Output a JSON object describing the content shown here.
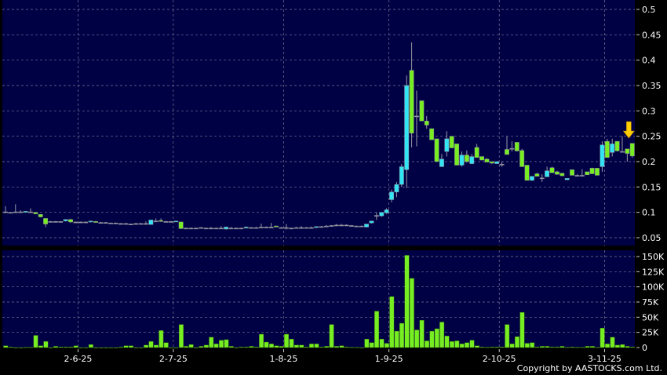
{
  "chart_data": {
    "type": "candlestick",
    "price": {
      "ylim": [
        0.05,
        0.5
      ],
      "yticks": [
        "0.5",
        "0.45",
        "0.4",
        "0.35",
        "0.3",
        "0.25",
        "0.2",
        "0.15",
        "0.1",
        "0.05"
      ],
      "ytick_values": [
        0.5,
        0.45,
        0.4,
        0.35,
        0.3,
        0.25,
        0.2,
        0.15,
        0.1,
        0.05
      ],
      "ohlc": [
        [
          0.101,
          0.112,
          0.1,
          0.1
        ],
        [
          0.1,
          0.101,
          0.099,
          0.1
        ],
        [
          0.1,
          0.116,
          0.1,
          0.101
        ],
        [
          0.101,
          0.104,
          0.1,
          0.101
        ],
        [
          0.1,
          0.102,
          0.1,
          0.102
        ],
        [
          0.101,
          0.108,
          0.1,
          0.101
        ],
        [
          0.1,
          0.101,
          0.097,
          0.097
        ],
        [
          0.096,
          0.096,
          0.09,
          0.091
        ],
        [
          0.088,
          0.088,
          0.071,
          0.077
        ],
        [
          0.082,
          0.083,
          0.081,
          0.082
        ],
        [
          0.082,
          0.083,
          0.081,
          0.081
        ],
        [
          0.081,
          0.082,
          0.08,
          0.082
        ],
        [
          0.083,
          0.086,
          0.082,
          0.086
        ],
        [
          0.086,
          0.087,
          0.079,
          0.081
        ],
        [
          0.081,
          0.082,
          0.08,
          0.081
        ],
        [
          0.081,
          0.082,
          0.08,
          0.081
        ],
        [
          0.081,
          0.082,
          0.08,
          0.08
        ],
        [
          0.081,
          0.083,
          0.08,
          0.083
        ],
        [
          0.082,
          0.083,
          0.08,
          0.08
        ],
        [
          0.08,
          0.081,
          0.079,
          0.08
        ],
        [
          0.08,
          0.081,
          0.079,
          0.08
        ],
        [
          0.079,
          0.08,
          0.078,
          0.079
        ],
        [
          0.079,
          0.08,
          0.078,
          0.078
        ],
        [
          0.078,
          0.079,
          0.077,
          0.078
        ],
        [
          0.078,
          0.079,
          0.077,
          0.077
        ],
        [
          0.077,
          0.078,
          0.076,
          0.077
        ],
        [
          0.077,
          0.079,
          0.076,
          0.078
        ],
        [
          0.078,
          0.079,
          0.077,
          0.078
        ],
        [
          0.078,
          0.082,
          0.077,
          0.078
        ],
        [
          0.076,
          0.085,
          0.076,
          0.085
        ],
        [
          0.083,
          0.088,
          0.082,
          0.083
        ],
        [
          0.084,
          0.088,
          0.081,
          0.082
        ],
        [
          0.082,
          0.083,
          0.081,
          0.082
        ],
        [
          0.082,
          0.083,
          0.081,
          0.082
        ],
        [
          0.081,
          0.083,
          0.081,
          0.083
        ],
        [
          0.081,
          0.082,
          0.067,
          0.068
        ],
        [
          0.069,
          0.07,
          0.068,
          0.069
        ],
        [
          0.069,
          0.07,
          0.068,
          0.069
        ],
        [
          0.069,
          0.07,
          0.068,
          0.068
        ],
        [
          0.07,
          0.071,
          0.069,
          0.07
        ],
        [
          0.069,
          0.07,
          0.068,
          0.069
        ],
        [
          0.069,
          0.071,
          0.068,
          0.069
        ],
        [
          0.069,
          0.07,
          0.068,
          0.069
        ],
        [
          0.069,
          0.073,
          0.068,
          0.069
        ],
        [
          0.067,
          0.072,
          0.066,
          0.071
        ],
        [
          0.069,
          0.071,
          0.068,
          0.069
        ],
        [
          0.069,
          0.07,
          0.068,
          0.069
        ],
        [
          0.069,
          0.07,
          0.068,
          0.069
        ],
        [
          0.069,
          0.072,
          0.068,
          0.071
        ],
        [
          0.07,
          0.071,
          0.069,
          0.07
        ],
        [
          0.07,
          0.071,
          0.069,
          0.07
        ],
        [
          0.07,
          0.078,
          0.069,
          0.071
        ],
        [
          0.071,
          0.072,
          0.07,
          0.071
        ],
        [
          0.071,
          0.079,
          0.07,
          0.071
        ],
        [
          0.073,
          0.074,
          0.071,
          0.071
        ],
        [
          0.07,
          0.071,
          0.069,
          0.07
        ],
        [
          0.07,
          0.077,
          0.066,
          0.07
        ],
        [
          0.069,
          0.07,
          0.068,
          0.069
        ],
        [
          0.07,
          0.071,
          0.069,
          0.07
        ],
        [
          0.07,
          0.073,
          0.069,
          0.07
        ],
        [
          0.07,
          0.071,
          0.069,
          0.07
        ],
        [
          0.07,
          0.072,
          0.069,
          0.07
        ],
        [
          0.07,
          0.072,
          0.069,
          0.072
        ],
        [
          0.072,
          0.073,
          0.07,
          0.072
        ],
        [
          0.072,
          0.075,
          0.071,
          0.073
        ],
        [
          0.073,
          0.075,
          0.072,
          0.074
        ],
        [
          0.074,
          0.077,
          0.073,
          0.075
        ],
        [
          0.075,
          0.077,
          0.074,
          0.075
        ],
        [
          0.075,
          0.076,
          0.073,
          0.074
        ],
        [
          0.074,
          0.075,
          0.073,
          0.073
        ],
        [
          0.073,
          0.074,
          0.072,
          0.073
        ],
        [
          0.073,
          0.074,
          0.072,
          0.072
        ],
        [
          0.071,
          0.075,
          0.07,
          0.077
        ],
        [
          0.079,
          0.082,
          0.078,
          0.083
        ],
        [
          0.094,
          0.1,
          0.085,
          0.094
        ],
        [
          0.093,
          0.1,
          0.091,
          0.1
        ],
        [
          0.099,
          0.108,
          0.097,
          0.105
        ],
        [
          0.125,
          0.145,
          0.12,
          0.14
        ],
        [
          0.14,
          0.16,
          0.13,
          0.155
        ],
        [
          0.155,
          0.195,
          0.15,
          0.19
        ],
        [
          0.184,
          0.37,
          0.148,
          0.35
        ],
        [
          0.38,
          0.435,
          0.228,
          0.256
        ],
        [
          0.29,
          0.34,
          0.23,
          0.29
        ],
        [
          0.32,
          0.32,
          0.28,
          0.28
        ],
        [
          0.28,
          0.29,
          0.265,
          0.272
        ],
        [
          0.265,
          0.265,
          0.243,
          0.243
        ],
        [
          0.245,
          0.245,
          0.2,
          0.2
        ],
        [
          0.19,
          0.215,
          0.19,
          0.205
        ],
        [
          0.22,
          0.26,
          0.21,
          0.245
        ],
        [
          0.25,
          0.25,
          0.227,
          0.227
        ],
        [
          0.235,
          0.235,
          0.193,
          0.193
        ],
        [
          0.193,
          0.22,
          0.19,
          0.213
        ],
        [
          0.213,
          0.222,
          0.198,
          0.2
        ],
        [
          0.196,
          0.215,
          0.195,
          0.21
        ],
        [
          0.228,
          0.235,
          0.208,
          0.208
        ],
        [
          0.21,
          0.21,
          0.203,
          0.203
        ],
        [
          0.205,
          0.207,
          0.199,
          0.199
        ],
        [
          0.2,
          0.2,
          0.195,
          0.197
        ],
        [
          0.196,
          0.2,
          0.196,
          0.2
        ],
        [
          0.195,
          0.2,
          0.19,
          0.195
        ],
        [
          0.224,
          0.25,
          0.214,
          0.214
        ],
        [
          0.226,
          0.24,
          0.22,
          0.226
        ],
        [
          0.238,
          0.238,
          0.22,
          0.221
        ],
        [
          0.222,
          0.225,
          0.19,
          0.19
        ],
        [
          0.193,
          0.193,
          0.163,
          0.163
        ],
        [
          0.163,
          0.17,
          0.162,
          0.171
        ],
        [
          0.176,
          0.178,
          0.171,
          0.171
        ],
        [
          0.168,
          0.175,
          0.16,
          0.168
        ],
        [
          0.17,
          0.19,
          0.17,
          0.182
        ],
        [
          0.188,
          0.19,
          0.178,
          0.178
        ],
        [
          0.18,
          0.182,
          0.174,
          0.175
        ],
        [
          0.177,
          0.178,
          0.172,
          0.172
        ],
        [
          0.164,
          0.167,
          0.164,
          0.167
        ],
        [
          0.184,
          0.184,
          0.173,
          0.173
        ],
        [
          0.173,
          0.175,
          0.172,
          0.173
        ],
        [
          0.173,
          0.185,
          0.172,
          0.173
        ],
        [
          0.18,
          0.18,
          0.174,
          0.174
        ],
        [
          0.187,
          0.188,
          0.176,
          0.176
        ],
        [
          0.187,
          0.187,
          0.173,
          0.173
        ],
        [
          0.19,
          0.24,
          0.18,
          0.233
        ],
        [
          0.24,
          0.245,
          0.208,
          0.208
        ],
        [
          0.218,
          0.245,
          0.21,
          0.235
        ],
        [
          0.24,
          0.24,
          0.22,
          0.221
        ],
        [
          0.22,
          0.25,
          0.22,
          0.22
        ],
        [
          0.225,
          0.225,
          0.2,
          0.216
        ],
        [
          0.236,
          0.236,
          0.208,
          0.211
        ]
      ]
    },
    "volume": {
      "ylim": [
        0,
        150000
      ],
      "yticks": [
        "150K",
        "125K",
        "100K",
        "75K",
        "50K",
        "25K",
        "0"
      ],
      "ytick_values": [
        150000,
        125000,
        100000,
        75000,
        50000,
        25000,
        0
      ],
      "values": [
        3000,
        1000,
        0,
        0,
        500,
        500,
        20000,
        3000,
        10000,
        0,
        2000,
        1000,
        1000,
        1000,
        3000,
        0,
        0,
        5000,
        0,
        0,
        0,
        0,
        0,
        1000,
        3000,
        3000,
        0,
        0,
        4000,
        10000,
        4000,
        28000,
        8000,
        0,
        0,
        38000,
        2000,
        5000,
        0,
        2000,
        4000,
        17000,
        6000,
        12000,
        13000,
        2000,
        0,
        1000,
        1000,
        2000,
        1000,
        22000,
        9000,
        6000,
        3000,
        2000,
        22000,
        14000,
        4000,
        4000,
        1000,
        6000,
        6000,
        1000,
        2000,
        38000,
        2000,
        3000,
        1000,
        500,
        500,
        0,
        14000,
        8000,
        60000,
        14000,
        7000,
        84000,
        27000,
        40000,
        152000,
        114000,
        29000,
        45000,
        11000,
        27000,
        31000,
        42000,
        19000,
        10000,
        11000,
        6000,
        8000,
        12000,
        3000,
        1000,
        500,
        1000,
        1000,
        1000,
        38000,
        6000,
        18000,
        58000,
        7000,
        8000,
        1000,
        2000,
        2000,
        1000,
        1000,
        2000,
        500,
        1000,
        500,
        500,
        2000,
        2000,
        500,
        32000,
        6000,
        17000,
        4000,
        5000,
        2000,
        1000
      ]
    },
    "xticks": [
      "2-6-25",
      "2-7-25",
      "1-8-25",
      "1-9-25",
      "2-10-25",
      "3-11-25"
    ],
    "xtick_index": [
      14,
      33,
      55,
      76,
      98,
      119
    ],
    "marker": {
      "type": "down-arrow",
      "index": 124,
      "color": "#ffcc00"
    },
    "grid": true,
    "colors": {
      "background": "#000044",
      "up": "#33e4f4",
      "down": "#77ee22",
      "flat": "#9a9aa8",
      "volume": "#77ee22",
      "grid": "#7a7a9a"
    }
  },
  "copyright": "Copyright by AASTOCKS.com Ltd."
}
